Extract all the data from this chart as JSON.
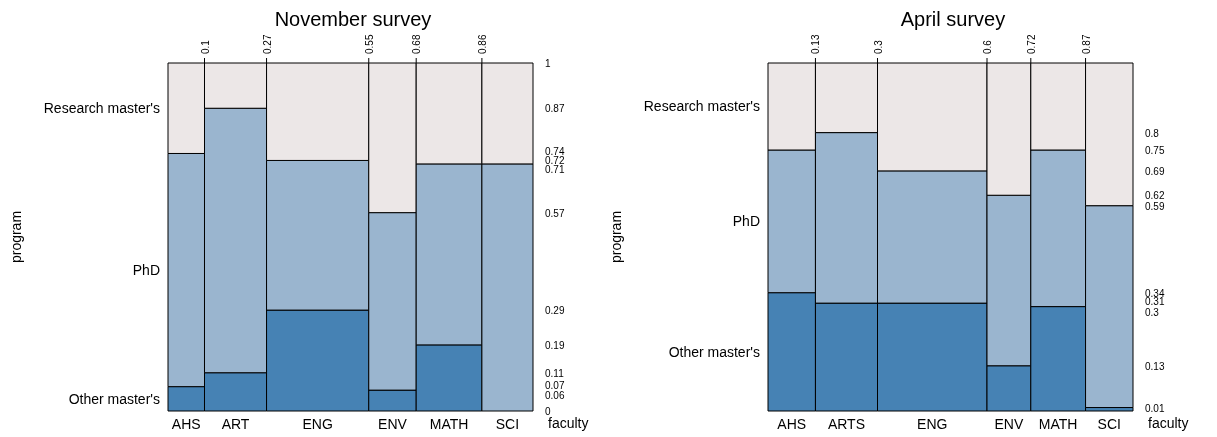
{
  "chart_data": [
    {
      "type": "bar",
      "stacked": true,
      "title": "November survey",
      "xlabel": "faculty",
      "ylabel": "program",
      "categories": [
        "AHS",
        "ART",
        "ENG",
        "ENV",
        "MATH",
        "SCI"
      ],
      "x2lim": [
        0,
        1
      ],
      "x2ticks": [
        0.1,
        0.27,
        0.55,
        0.68,
        0.86
      ],
      "y2lim": [
        0,
        1
      ],
      "y2ticks": [
        0,
        0.06,
        0.07,
        0.11,
        0.19,
        0.29,
        0.57,
        0.71,
        0.72,
        0.74,
        0.87,
        1
      ],
      "series": [
        {
          "name": "Other master's",
          "color": "#4682b4",
          "axis": "y2",
          "values": [
            0.07,
            0.11,
            0.29,
            0.06,
            0.19,
            0
          ]
        },
        {
          "name": "PhD",
          "color": "#9ab5cf",
          "axis": "y2",
          "values": [
            0.67,
            0.76,
            0.43,
            0.51,
            0.52,
            0.71
          ]
        },
        {
          "name": "Research master's",
          "color": "#ece7e7",
          "axis": "y2",
          "values": [
            0.26,
            0.13,
            0.28,
            0.43,
            0.29,
            0.29
          ]
        }
      ]
    },
    {
      "type": "bar",
      "stacked": true,
      "title": "April survey",
      "xlabel": "faculty",
      "ylabel": "program",
      "categories": [
        "AHS",
        "ARTS",
        "ENG",
        "ENV",
        "MATH",
        "SCI"
      ],
      "x2lim": [
        0,
        1
      ],
      "x2ticks": [
        0.13,
        0.3,
        0.6,
        0.72,
        0.87
      ],
      "y2lim": [
        0,
        1
      ],
      "y2ticks": [
        0.01,
        0.13,
        0.3,
        0.31,
        0.34,
        0.59,
        0.62,
        0.69,
        0.75,
        0.8
      ],
      "series": [
        {
          "name": "Other master's",
          "color": "#4682b4",
          "axis": "y2",
          "values": [
            0.34,
            0.31,
            0.31,
            0.13,
            0.3,
            0.01
          ]
        },
        {
          "name": "PhD",
          "color": "#9ab5cf",
          "axis": "y2",
          "values": [
            0.41,
            0.49,
            0.38,
            0.49,
            0.45,
            0.58
          ]
        },
        {
          "name": "Research master's",
          "color": "#ece7e7",
          "axis": "y2",
          "values": [
            0.25,
            0.2,
            0.31,
            0.38,
            0.25,
            0.41
          ]
        }
      ]
    }
  ]
}
